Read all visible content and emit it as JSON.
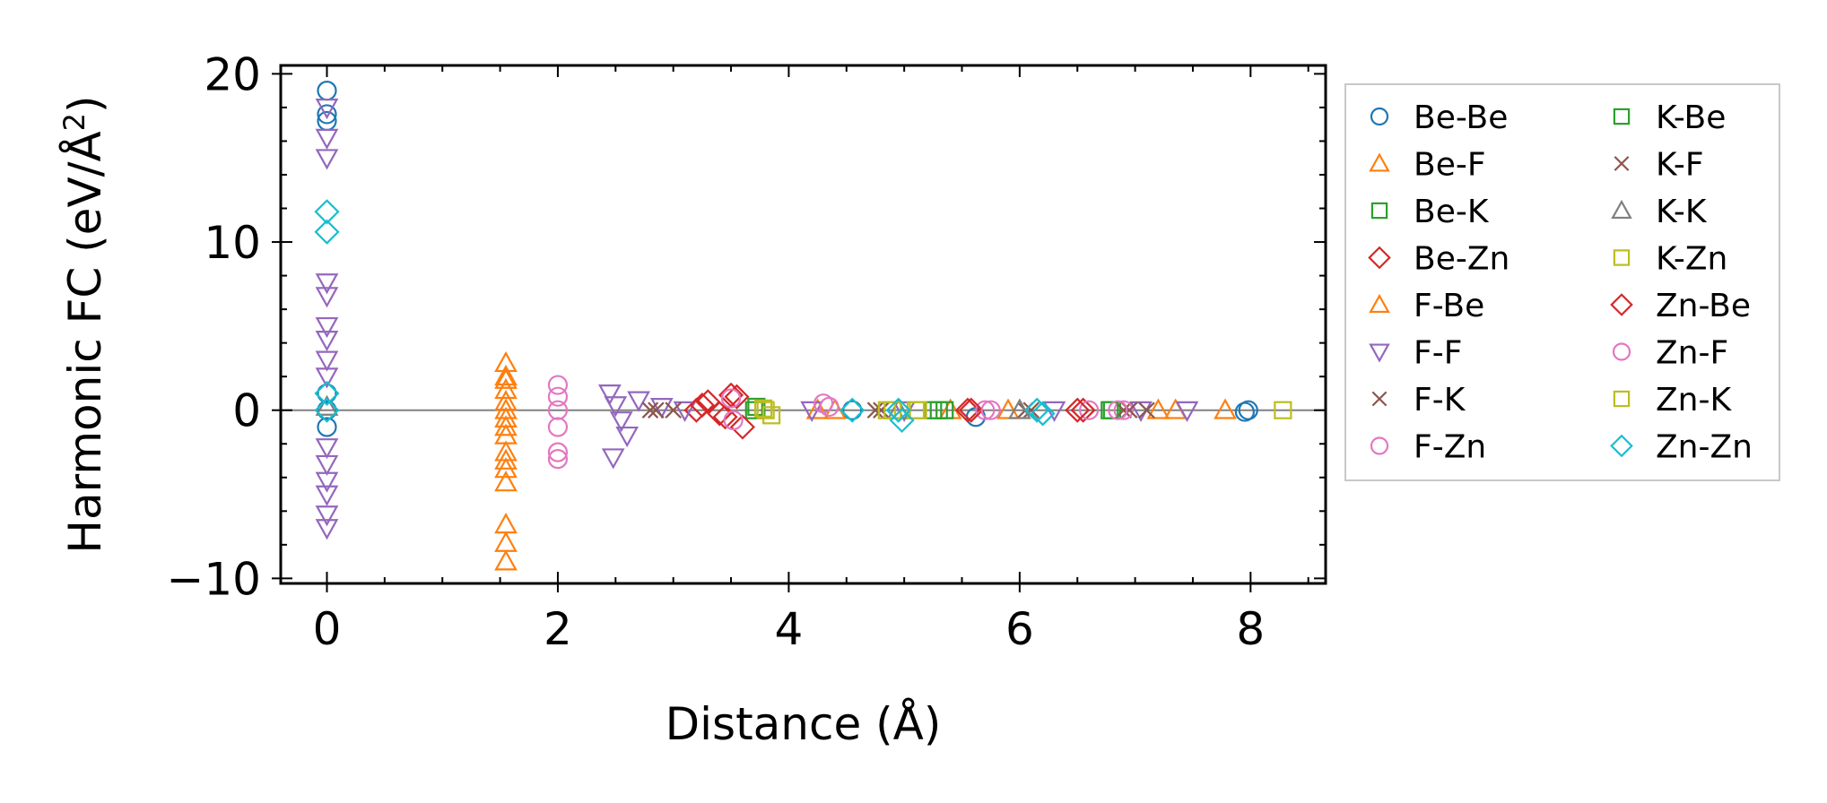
{
  "chart_data": {
    "type": "scatter",
    "title": "",
    "xlabel": "Distance (Å)",
    "ylabel": "Harmonic FC (eV/Å",
    "ylabel_superscript": "2",
    "ylabel_close": ")",
    "xlim": [
      -0.4,
      8.65
    ],
    "ylim": [
      -10.3,
      20.5
    ],
    "x_ticks": [
      0,
      2,
      4,
      6,
      8
    ],
    "x_tick_labels": [
      "0",
      "2",
      "4",
      "6",
      "8"
    ],
    "y_ticks": [
      -10,
      0,
      10,
      20
    ],
    "y_tick_labels": [
      "−10",
      "0",
      "10",
      "20"
    ],
    "reference_line_y": 0,
    "grid": false,
    "legend_position": "outside-right",
    "series": [
      {
        "name": "Be-Be",
        "marker": "circle",
        "color": "#1f77b4",
        "points": [
          [
            0,
            19.0
          ],
          [
            0,
            17.6
          ],
          [
            0,
            17.2
          ],
          [
            0,
            1.0
          ],
          [
            0,
            0
          ],
          [
            0,
            -1.0
          ],
          [
            7.98,
            0.0
          ],
          [
            7.95,
            -0.1
          ],
          [
            5.62,
            -0.4
          ],
          [
            4.55,
            0.0
          ]
        ]
      },
      {
        "name": "Be-F",
        "marker": "triangle-up",
        "color": "#ff7f0e",
        "points": [
          [
            1.55,
            2.8
          ],
          [
            1.55,
            2.0
          ],
          [
            1.55,
            1.2
          ],
          [
            1.55,
            0.5
          ],
          [
            1.55,
            0
          ],
          [
            1.55,
            -0.5
          ],
          [
            1.55,
            -1.5
          ],
          [
            1.55,
            -2.5
          ],
          [
            1.55,
            -3.5
          ],
          [
            1.55,
            -4.3
          ],
          [
            1.55,
            -6.8
          ],
          [
            1.55,
            -7.9
          ],
          [
            1.55,
            -9.0
          ],
          [
            4.25,
            0.0
          ],
          [
            5.4,
            0.0
          ],
          [
            7.35,
            0.0
          ],
          [
            7.78,
            0.0
          ]
        ]
      },
      {
        "name": "Be-K",
        "marker": "square",
        "color": "#2ca02c",
        "points": [
          [
            3.7,
            0.0
          ],
          [
            5.25,
            0.0
          ],
          [
            5.35,
            0.0
          ],
          [
            6.8,
            0.0
          ]
        ]
      },
      {
        "name": "Be-Zn",
        "marker": "diamond",
        "color": "#d62728",
        "points": [
          [
            3.2,
            0.0
          ],
          [
            3.3,
            0.5
          ],
          [
            3.4,
            -0.2
          ],
          [
            3.55,
            0.8
          ],
          [
            3.6,
            -1.0
          ],
          [
            5.55,
            0.0
          ],
          [
            6.55,
            0.0
          ]
        ]
      },
      {
        "name": "F-Be",
        "marker": "triangle-up",
        "color": "#ff7f0e",
        "points": [
          [
            1.55,
            1.8
          ],
          [
            1.55,
            -1.0
          ],
          [
            1.55,
            -3.0
          ],
          [
            4.4,
            0.0
          ],
          [
            5.9,
            0.0
          ],
          [
            7.2,
            0.0
          ]
        ]
      },
      {
        "name": "F-F",
        "marker": "triangle-down",
        "color": "#9467bd",
        "points": [
          [
            0,
            18.0
          ],
          [
            0,
            16.2
          ],
          [
            0,
            15.0
          ],
          [
            0,
            7.6
          ],
          [
            0,
            6.8
          ],
          [
            0,
            5.0
          ],
          [
            0,
            4.2
          ],
          [
            0,
            3.0
          ],
          [
            0,
            2.0
          ],
          [
            0,
            -2.2
          ],
          [
            0,
            -3.2
          ],
          [
            0,
            -4.2
          ],
          [
            0,
            -5.0
          ],
          [
            0,
            -6.2
          ],
          [
            0,
            -7.0
          ],
          [
            2.45,
            1.0
          ],
          [
            2.5,
            0.3
          ],
          [
            2.55,
            -0.6
          ],
          [
            2.6,
            -1.5
          ],
          [
            2.48,
            -2.8
          ],
          [
            2.7,
            0.6
          ],
          [
            2.9,
            0.2
          ],
          [
            3.1,
            0.0
          ],
          [
            4.2,
            0.0
          ],
          [
            5.0,
            0.0
          ],
          [
            6.3,
            0.0
          ],
          [
            7.05,
            0.0
          ],
          [
            7.45,
            0.0
          ]
        ]
      },
      {
        "name": "F-K",
        "marker": "x",
        "color": "#8c564b",
        "points": [
          [
            2.8,
            0.0
          ],
          [
            3.0,
            0.0
          ],
          [
            4.8,
            0.0
          ],
          [
            6.05,
            0.0
          ],
          [
            6.9,
            0.0
          ],
          [
            7.1,
            0.0
          ]
        ]
      },
      {
        "name": "F-Zn",
        "marker": "circle",
        "color": "#e377c2",
        "points": [
          [
            2.0,
            1.5
          ],
          [
            2.0,
            0.8
          ],
          [
            2.0,
            0.0
          ],
          [
            2.0,
            -1.0
          ],
          [
            2.0,
            -2.5
          ],
          [
            2.0,
            -2.9
          ],
          [
            4.3,
            0.4
          ],
          [
            5.7,
            0.0
          ],
          [
            6.6,
            0.0
          ],
          [
            6.9,
            0.0
          ]
        ]
      },
      {
        "name": "K-Be",
        "marker": "square",
        "color": "#2ca02c",
        "points": [
          [
            3.72,
            0.2
          ],
          [
            5.3,
            0.0
          ],
          [
            6.78,
            0.0
          ]
        ]
      },
      {
        "name": "K-F",
        "marker": "x",
        "color": "#8c564b",
        "points": [
          [
            2.85,
            0.0
          ],
          [
            4.75,
            0.0
          ],
          [
            6.1,
            0.0
          ],
          [
            6.95,
            0.0
          ]
        ]
      },
      {
        "name": "K-K",
        "marker": "triangle-up",
        "color": "#7f7f7f",
        "points": [
          [
            0,
            0.2
          ],
          [
            4.95,
            0.0
          ],
          [
            6.0,
            0.0
          ]
        ]
      },
      {
        "name": "K-Zn",
        "marker": "square",
        "color": "#bcbd22",
        "points": [
          [
            3.8,
            0.0
          ],
          [
            3.85,
            -0.3
          ],
          [
            4.9,
            0.0
          ],
          [
            5.1,
            0.0
          ],
          [
            8.28,
            0.0
          ]
        ]
      },
      {
        "name": "Zn-Be",
        "marker": "diamond",
        "color": "#d62728",
        "points": [
          [
            3.25,
            0.3
          ],
          [
            3.45,
            -0.4
          ],
          [
            3.5,
            0.9
          ],
          [
            5.58,
            0.0
          ],
          [
            6.5,
            0.0
          ]
        ]
      },
      {
        "name": "Zn-F",
        "marker": "circle",
        "color": "#e377c2",
        "points": [
          [
            3.5,
            0.7
          ],
          [
            3.52,
            -0.6
          ],
          [
            4.35,
            0.2
          ],
          [
            5.75,
            0.0
          ],
          [
            6.85,
            0.0
          ]
        ]
      },
      {
        "name": "Zn-K",
        "marker": "square",
        "color": "#bcbd22",
        "points": [
          [
            3.78,
            0.1
          ],
          [
            4.85,
            0.0
          ],
          [
            5.12,
            0.0
          ]
        ]
      },
      {
        "name": "Zn-Zn",
        "marker": "diamond",
        "color": "#17becf",
        "points": [
          [
            0,
            11.8
          ],
          [
            0,
            10.6
          ],
          [
            0,
            1.0
          ],
          [
            0,
            0.0
          ],
          [
            4.55,
            0.0
          ],
          [
            4.95,
            0.0
          ],
          [
            4.98,
            -0.6
          ],
          [
            6.15,
            0.0
          ],
          [
            6.2,
            -0.2
          ]
        ]
      }
    ]
  }
}
